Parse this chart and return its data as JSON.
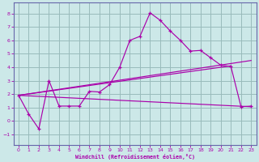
{
  "background_color": "#cce8e8",
  "grid_color": "#99bbbb",
  "line_color": "#aa00aa",
  "spine_color": "#6666aa",
  "xlabel": "Windchill (Refroidissement éolien,°C)",
  "xlim": [
    -0.5,
    23.5
  ],
  "ylim": [
    -1.8,
    8.8
  ],
  "xticks": [
    0,
    1,
    2,
    3,
    4,
    5,
    6,
    7,
    8,
    9,
    10,
    11,
    12,
    13,
    14,
    15,
    16,
    17,
    18,
    19,
    20,
    21,
    22,
    23
  ],
  "yticks": [
    -1,
    0,
    1,
    2,
    3,
    4,
    5,
    6,
    7,
    8
  ],
  "curve1_x": [
    0,
    1,
    2,
    3,
    4,
    5,
    6,
    7,
    8,
    9,
    10,
    11,
    12,
    13,
    14,
    15,
    16,
    17,
    18,
    19,
    20,
    21,
    22,
    23
  ],
  "curve1_y": [
    1.9,
    0.5,
    -0.6,
    3.0,
    1.1,
    1.1,
    1.1,
    2.2,
    2.15,
    2.7,
    4.0,
    6.0,
    6.3,
    8.05,
    7.5,
    6.7,
    6.0,
    5.2,
    5.25,
    4.7,
    4.15,
    4.05,
    1.05,
    1.1
  ],
  "trendline1_x": [
    0,
    23
  ],
  "trendline1_y": [
    1.9,
    4.5
  ],
  "trendline2_x": [
    0,
    21
  ],
  "trendline2_y": [
    1.9,
    4.1
  ],
  "trendline3_x": [
    0,
    23
  ],
  "trendline3_y": [
    1.9,
    1.05
  ]
}
